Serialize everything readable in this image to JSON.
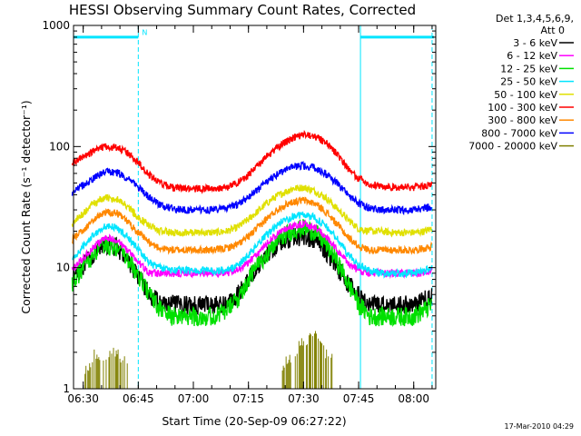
{
  "chart_data": {
    "type": "line",
    "title": "HESSI Observing Summary Count Rates, Corrected",
    "xlabel": "Start Time (20-Sep-09 06:27:22)",
    "ylabel": "Corrected Count Rate (s⁻¹ detector⁻¹)",
    "yscale": "log",
    "ylim": [
      1,
      1000
    ],
    "xlim": [
      "06:27:22",
      "08:06:00"
    ],
    "x_ticks": [
      "06:30",
      "06:45",
      "07:00",
      "07:15",
      "07:30",
      "07:45",
      "08:00"
    ],
    "y_ticks": [
      "1",
      "10",
      "100",
      "1000"
    ],
    "legend_header": [
      "Det 1,3,4,5,6,9,",
      "Att 0"
    ],
    "legend_position": "right",
    "timestamp": "17-Mar-2010 04:29",
    "annotations": [
      {
        "text": "N",
        "x": "06:46",
        "y": 880
      }
    ],
    "flag_bar": {
      "color": "#00e5ff",
      "y": 800,
      "segments": [
        [
          "06:27:22",
          "06:45:00"
        ],
        [
          "07:45:30",
          "08:05:30"
        ]
      ]
    },
    "vertical_lines": [
      {
        "x": "06:27:22",
        "style": "solid",
        "color": "#00e5ff"
      },
      {
        "x": "06:45:00",
        "style": "dashed",
        "color": "#00e5ff"
      },
      {
        "x": "07:45:30",
        "style": "solid",
        "color": "#00e5ff"
      },
      {
        "x": "08:05:00",
        "style": "dashed",
        "color": "#00e5ff"
      }
    ],
    "x": [
      "06:27",
      "06:30",
      "06:33",
      "06:36",
      "06:39",
      "06:42",
      "06:45",
      "06:48",
      "06:51",
      "06:54",
      "06:57",
      "07:00",
      "07:03",
      "07:06",
      "07:09",
      "07:12",
      "07:15",
      "07:18",
      "07:21",
      "07:24",
      "07:27",
      "07:30",
      "07:33",
      "07:36",
      "07:39",
      "07:42",
      "07:45",
      "07:48",
      "07:51",
      "07:54",
      "07:57",
      "08:00",
      "08:03",
      "08:05"
    ],
    "series": [
      {
        "name": "3 - 6 keV",
        "color": "#000000",
        "values": [
          8,
          10.5,
          13,
          15.5,
          15,
          12,
          8.5,
          6,
          5,
          5,
          5,
          5,
          5,
          5,
          5,
          6,
          8,
          11,
          14,
          16.5,
          18,
          18.5,
          17,
          14,
          10.5,
          7.5,
          6,
          5,
          5,
          5,
          5,
          5,
          5.5,
          6
        ]
      },
      {
        "name": "6 - 12 keV",
        "color": "#ff00ff",
        "values": [
          9.5,
          12,
          15,
          17.5,
          17,
          14,
          11,
          9,
          9,
          9,
          9,
          9,
          9,
          9,
          9,
          9.5,
          11,
          13.5,
          17,
          20,
          22,
          23,
          21.5,
          18,
          14,
          11,
          9.5,
          9,
          9,
          9,
          9,
          9,
          9,
          9.5
        ]
      },
      {
        "name": "12 - 25 keV",
        "color": "#00e000",
        "values": [
          7.5,
          10,
          13,
          15.5,
          15,
          12,
          8.5,
          6,
          4.5,
          4,
          4,
          4,
          4,
          4,
          4.5,
          5.5,
          8,
          11,
          14.5,
          18,
          20.5,
          21.5,
          20,
          16,
          11.5,
          7.5,
          5,
          4,
          4,
          4,
          4,
          4,
          4.5,
          5
        ]
      },
      {
        "name": "25 - 50 keV",
        "color": "#00e5ff",
        "values": [
          11.5,
          15,
          19,
          22,
          21.5,
          18,
          14,
          11,
          10,
          9.5,
          9.5,
          9.5,
          9.5,
          9.5,
          9.5,
          10.5,
          12.5,
          16,
          20,
          24,
          26.5,
          27.5,
          26,
          22,
          17.5,
          13,
          10.5,
          9.5,
          9,
          9,
          9,
          9,
          9.5,
          10
        ]
      },
      {
        "name": "50 - 100 keV",
        "color": "#e0e000",
        "values": [
          23,
          28,
          34,
          38,
          37,
          32,
          26,
          22,
          20,
          19.5,
          19.5,
          19.5,
          19.5,
          19.5,
          20,
          21.5,
          25,
          30,
          36,
          41,
          45,
          46,
          43,
          38,
          31,
          25,
          21,
          20,
          20,
          19.5,
          19.5,
          19.5,
          20,
          21
        ]
      },
      {
        "name": "100 - 300 keV",
        "color": "#ff0000",
        "values": [
          72,
          82,
          92,
          100,
          99,
          89,
          74,
          58,
          50,
          46,
          45,
          45,
          45,
          45,
          46,
          50,
          58,
          72,
          88,
          104,
          118,
          125,
          122,
          108,
          88,
          66,
          54,
          49,
          47,
          46,
          46,
          46,
          47,
          50
        ]
      },
      {
        "name": "300 - 800 keV",
        "color": "#ff8800",
        "values": [
          17,
          20.5,
          25,
          29,
          28.5,
          24,
          19.5,
          16,
          14.5,
          14,
          14,
          14,
          14,
          14,
          14.5,
          15.5,
          18,
          22,
          27,
          32,
          35,
          36,
          34,
          29,
          23,
          18,
          15,
          14,
          14,
          14,
          14,
          14,
          14.5,
          15
        ]
      },
      {
        "name": "800 - 7000 keV",
        "color": "#0000ff",
        "values": [
          42,
          48,
          55,
          62,
          61,
          55,
          46,
          38,
          33,
          31,
          30,
          30,
          30,
          30,
          31,
          33,
          38,
          45,
          54,
          62,
          68,
          70,
          67,
          60,
          50,
          40,
          34,
          31,
          30,
          30,
          30,
          30,
          31,
          32
        ]
      },
      {
        "name": "7000 - 20000 keV",
        "color": "#808000",
        "values": [
          null,
          1.3,
          2,
          2,
          2,
          1.6,
          null,
          null,
          null,
          null,
          null,
          null,
          null,
          null,
          null,
          null,
          null,
          null,
          null,
          1.6,
          2,
          2.5,
          2.8,
          2,
          1.6,
          null,
          null,
          null,
          null,
          null,
          null,
          null,
          null,
          null
        ]
      }
    ]
  }
}
